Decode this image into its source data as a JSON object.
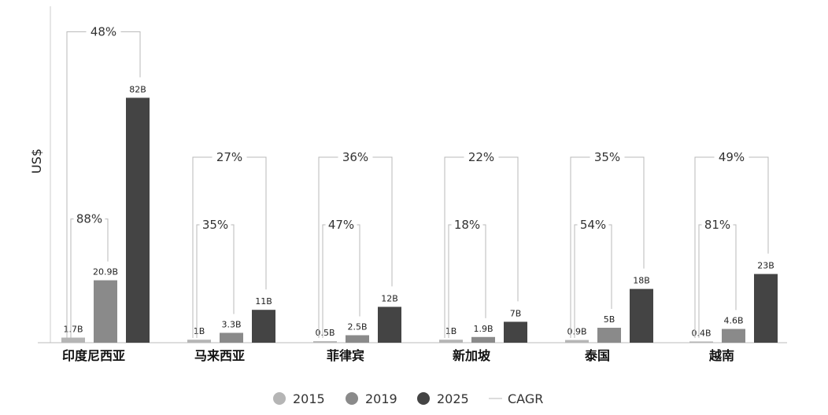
{
  "chart_data": {
    "type": "bar",
    "ylabel": "US$",
    "categories": [
      "印度尼西亚",
      "马来西亚",
      "菲律宾",
      "新加坡",
      "泰国",
      "越南"
    ],
    "series": [
      {
        "name": "2015",
        "values": [
          1.7,
          1,
          0.5,
          1,
          0.9,
          0.4
        ],
        "labels": [
          "1.7B",
          "1B",
          "0.5B",
          "1B",
          "0.9B",
          "0.4B"
        ],
        "color": "#b5b5b5"
      },
      {
        "name": "2019",
        "values": [
          20.9,
          3.3,
          2.5,
          1.9,
          5,
          4.6
        ],
        "labels": [
          "20.9B",
          "3.3B",
          "2.5B",
          "1.9B",
          "5B",
          "4.6B"
        ],
        "color": "#8a8a8a"
      },
      {
        "name": "2025",
        "values": [
          82,
          11,
          12,
          7,
          18,
          23
        ],
        "labels": [
          "82B",
          "11B",
          "12B",
          "7B",
          "18B",
          "23B"
        ],
        "color": "#444444"
      }
    ],
    "cagr_2015_2019": [
      "88%",
      "35%",
      "47%",
      "18%",
      "54%",
      "81%"
    ],
    "cagr_2015_2025": [
      "48%",
      "27%",
      "36%",
      "22%",
      "35%",
      "49%"
    ],
    "legend": {
      "items": [
        "2015",
        "2019",
        "2025",
        "CAGR"
      ],
      "placement": "bottom-center"
    },
    "grid": false
  }
}
